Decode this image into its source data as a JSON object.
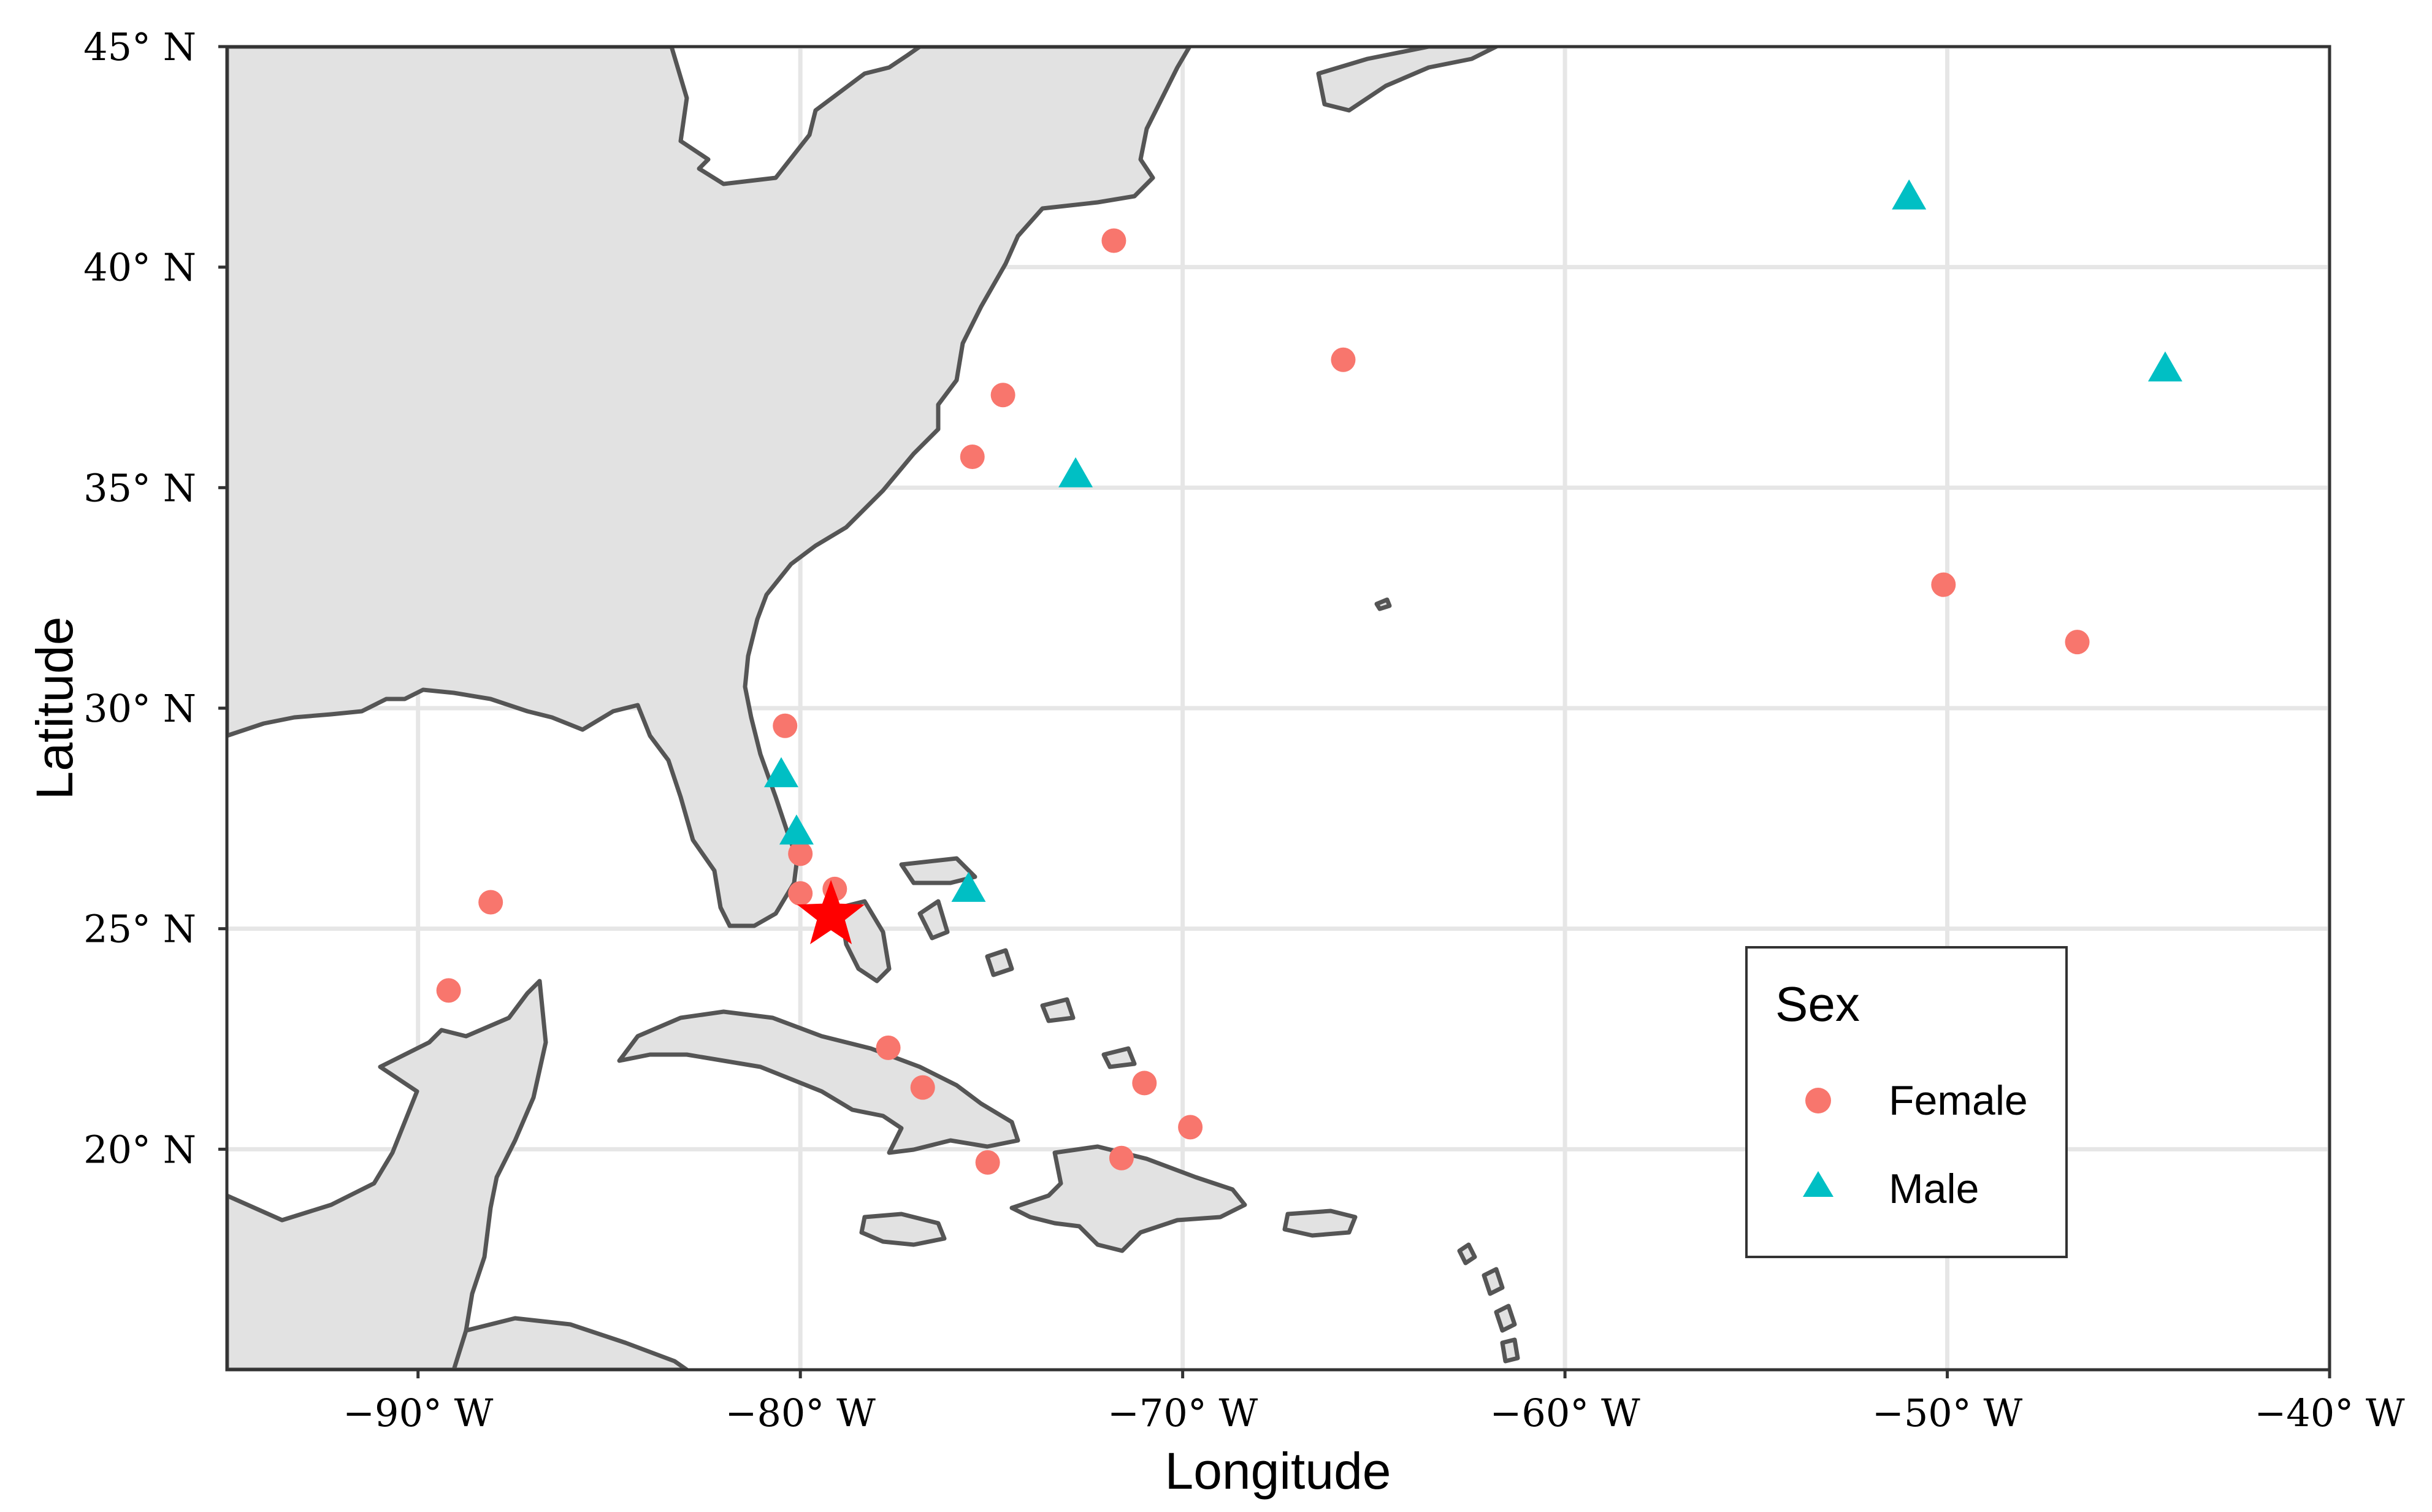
{
  "chart_data": {
    "type": "scatter",
    "subtype": "map",
    "xlabel": "Longitude",
    "ylabel": "Latitude",
    "xlim": [
      -95,
      -40
    ],
    "ylim": [
      15,
      45
    ],
    "x_ticks": [
      -90,
      -80,
      -70,
      -60,
      -50,
      -40
    ],
    "x_tick_labels": [
      "−90° W",
      "−80° W",
      "−70° W",
      "−60° W",
      "−50° W",
      "−40° W"
    ],
    "y_ticks": [
      20,
      25,
      30,
      35,
      40,
      45
    ],
    "y_tick_labels": [
      "20° N",
      "25° N",
      "30° N",
      "35° N",
      "40° N",
      "45° N"
    ],
    "grid": true,
    "legend": {
      "title": "Sex",
      "placement": "bottom-right",
      "entries": [
        {
          "label": "Female",
          "marker": "circle",
          "color": "#f8766d"
        },
        {
          "label": "Male",
          "marker": "triangle",
          "color": "#00bfc4"
        }
      ]
    },
    "series": [
      {
        "name": "Female",
        "marker": "circle",
        "color": "#f8766d",
        "points": [
          {
            "lon": -71.8,
            "lat": 40.6
          },
          {
            "lon": -65.8,
            "lat": 37.9
          },
          {
            "lon": -74.7,
            "lat": 37.1
          },
          {
            "lon": -75.5,
            "lat": 35.7
          },
          {
            "lon": -50.1,
            "lat": 32.8
          },
          {
            "lon": -46.6,
            "lat": 31.5
          },
          {
            "lon": -80.4,
            "lat": 29.6
          },
          {
            "lon": -80.0,
            "lat": 26.7
          },
          {
            "lon": -80.0,
            "lat": 25.8
          },
          {
            "lon": -79.1,
            "lat": 25.9
          },
          {
            "lon": -88.1,
            "lat": 25.6
          },
          {
            "lon": -89.2,
            "lat": 23.6
          },
          {
            "lon": -77.7,
            "lat": 22.3
          },
          {
            "lon": -76.8,
            "lat": 21.4
          },
          {
            "lon": -71.0,
            "lat": 21.5
          },
          {
            "lon": -69.8,
            "lat": 20.5
          },
          {
            "lon": -75.1,
            "lat": 19.7
          },
          {
            "lon": -71.6,
            "lat": 19.8
          }
        ]
      },
      {
        "name": "Male",
        "marker": "triangle",
        "color": "#00bfc4",
        "points": [
          {
            "lon": -51.0,
            "lat": 41.6
          },
          {
            "lon": -44.3,
            "lat": 37.7
          },
          {
            "lon": -72.8,
            "lat": 35.3
          },
          {
            "lon": -80.5,
            "lat": 28.5
          },
          {
            "lon": -80.1,
            "lat": 27.2
          },
          {
            "lon": -75.6,
            "lat": 25.9
          }
        ]
      }
    ],
    "highlight": {
      "marker": "star",
      "color": "#ff0000",
      "lon": -79.2,
      "lat": 25.3
    }
  }
}
